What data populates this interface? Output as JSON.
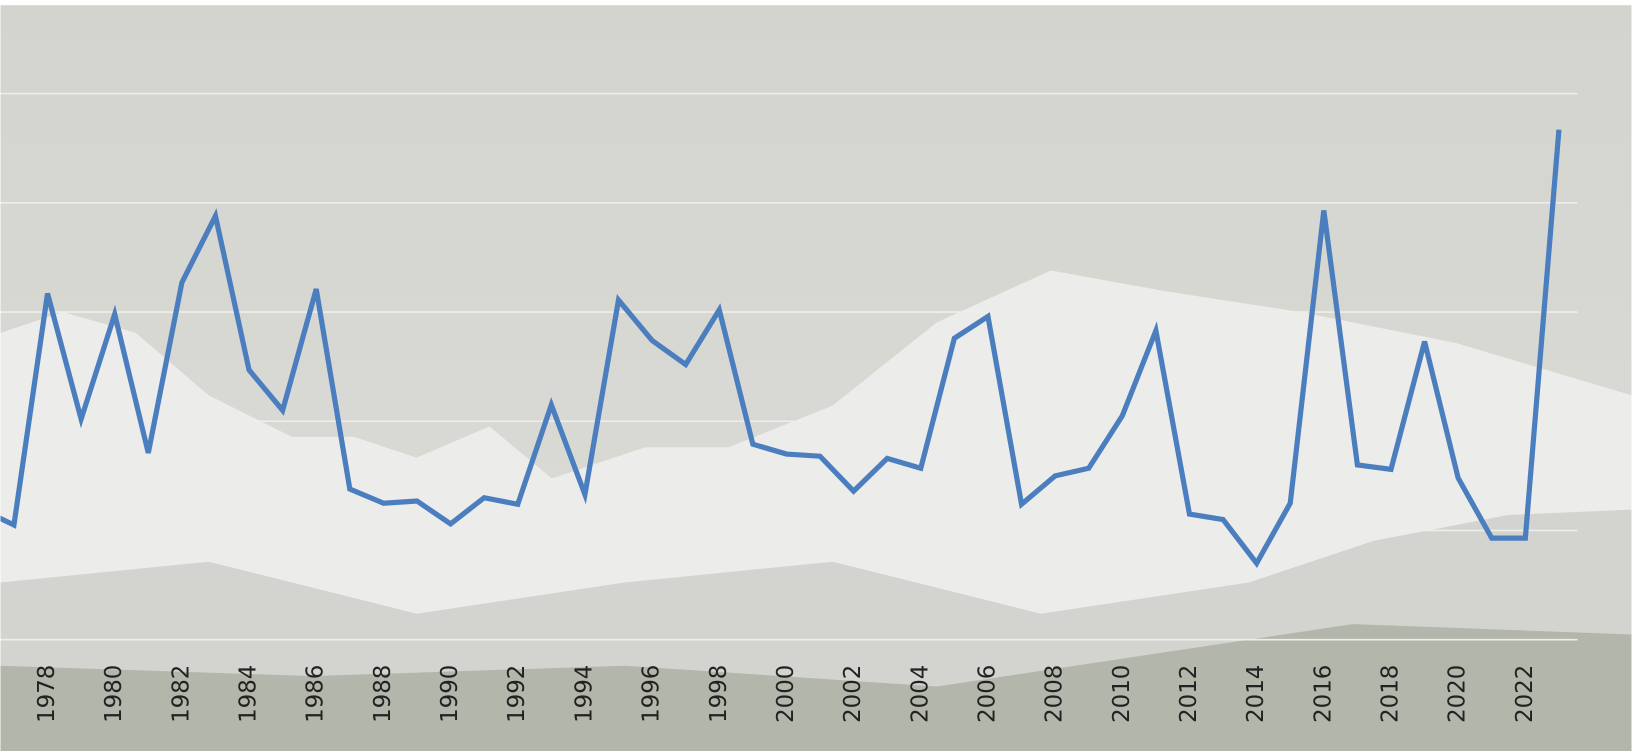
{
  "chart_data": {
    "type": "line",
    "x": [
      1976,
      1977,
      1978,
      1979,
      1980,
      1981,
      1982,
      1983,
      1984,
      1985,
      1986,
      1987,
      1988,
      1989,
      1990,
      1991,
      1992,
      1993,
      1994,
      1995,
      1996,
      1997,
      1998,
      1999,
      2000,
      2001,
      2002,
      2003,
      2004,
      2005,
      2006,
      2007,
      2008,
      2009,
      2010,
      2011,
      2012,
      2013,
      2014,
      2015,
      2016,
      2017,
      2018,
      2019,
      2020,
      2021,
      2022,
      2023
    ],
    "series": [
      {
        "color": "#4a7ebf",
        "values": [
          1.2,
          1.05,
          3.17,
          2.02,
          2.98,
          1.71,
          3.27,
          3.88,
          2.47,
          2.1,
          3.21,
          1.38,
          1.25,
          1.27,
          1.06,
          1.3,
          1.24,
          2.15,
          1.33,
          3.11,
          2.74,
          2.52,
          3.02,
          1.79,
          1.7,
          1.68,
          1.36,
          1.66,
          1.57,
          2.76,
          2.96,
          1.24,
          1.5,
          1.57,
          2.05,
          2.83,
          1.15,
          1.1,
          0.7,
          1.25,
          3.93,
          1.6,
          1.56,
          2.73,
          1.48,
          0.93,
          0.93,
          4.67
        ]
      }
    ],
    "xlim": [
      1976.6,
      2023.55
    ],
    "xticks": [
      1978,
      1980,
      1982,
      1984,
      1986,
      1988,
      1990,
      1992,
      1994,
      1996,
      1998,
      2000,
      2002,
      2004,
      2006,
      2008,
      2010,
      2012,
      2014,
      2016,
      2018,
      2020,
      2022
    ],
    "ylim": [
      0,
      5
    ],
    "yticks": [
      0,
      1,
      2,
      3,
      4,
      5
    ],
    "grid": true
  }
}
